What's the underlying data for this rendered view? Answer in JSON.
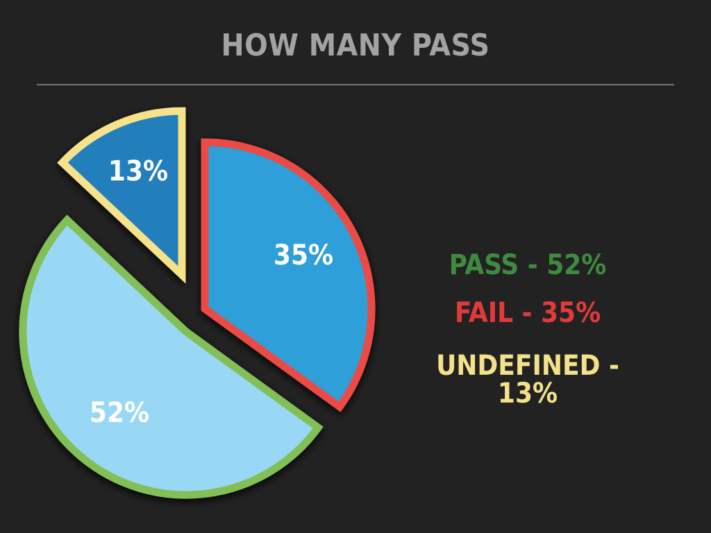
{
  "title": "HOW MANY PASS",
  "colors": {
    "background": "#222222",
    "pass_fill": "#99d8f5",
    "pass_border": "#82bf57",
    "fail_fill": "#2f9fd8",
    "fail_border": "#ea4c47",
    "undefined_fill": "#217fbb",
    "undefined_border": "#f6e28a",
    "legend_pass": "#3f8a3f",
    "legend_fail": "#e23a3a",
    "legend_undefined": "#f3e28a"
  },
  "legend": {
    "pass": "PASS - 52%",
    "fail": "FAIL - 35%",
    "undefined_line1": "UNDEFINED -",
    "undefined_line2": "13%"
  },
  "chart_data": {
    "type": "pie",
    "title": "HOW MANY PASS",
    "slices": [
      {
        "label": "PASS",
        "value": 52,
        "display": "52%",
        "exploded": true
      },
      {
        "label": "FAIL",
        "value": 35,
        "display": "35%",
        "exploded": true
      },
      {
        "label": "UNDEFINED",
        "value": 13,
        "display": "13%",
        "exploded": true
      }
    ],
    "legend_position": "right"
  }
}
